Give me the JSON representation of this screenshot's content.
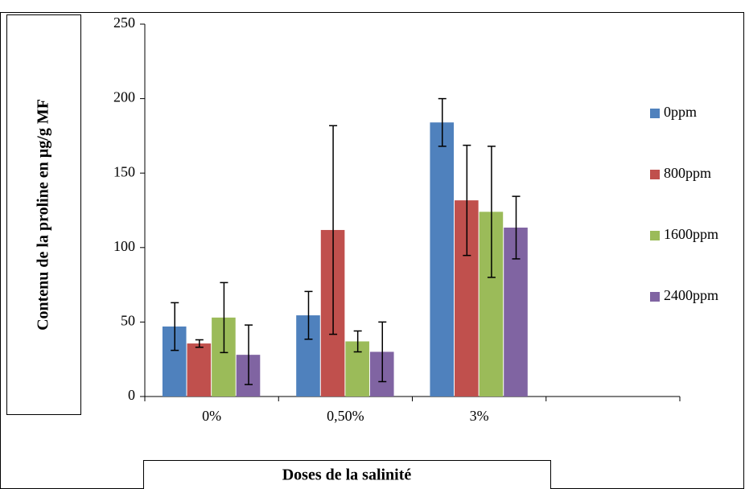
{
  "chart_data": {
    "type": "bar",
    "y_label": "Contenu de la proline en µg/g MF",
    "x_label": "Doses de la salinité",
    "categories": [
      "0%",
      "0,50%",
      "3%",
      null
    ],
    "series": [
      {
        "name": "0ppm",
        "color": "#4f81bd",
        "values": [
          47,
          54.5,
          184,
          null
        ],
        "errors": [
          16,
          16,
          16,
          null
        ]
      },
      {
        "name": "800ppm",
        "color": "#c0504d",
        "values": [
          35.6,
          111.8,
          131.7,
          null
        ],
        "errors": [
          2.5,
          70,
          37,
          null
        ]
      },
      {
        "name": "1600ppm",
        "color": "#9bbb59",
        "values": [
          53,
          37,
          124,
          null
        ],
        "errors": [
          23.5,
          7,
          44,
          null
        ]
      },
      {
        "name": "2400ppm",
        "color": "#8064a2",
        "values": [
          28,
          30,
          113.4,
          null
        ],
        "errors": [
          20,
          20,
          21,
          null
        ]
      }
    ],
    "ylim": [
      0,
      250
    ],
    "yticks": [
      0,
      50,
      100,
      150,
      200,
      250
    ],
    "grid": false,
    "legend": "right"
  }
}
